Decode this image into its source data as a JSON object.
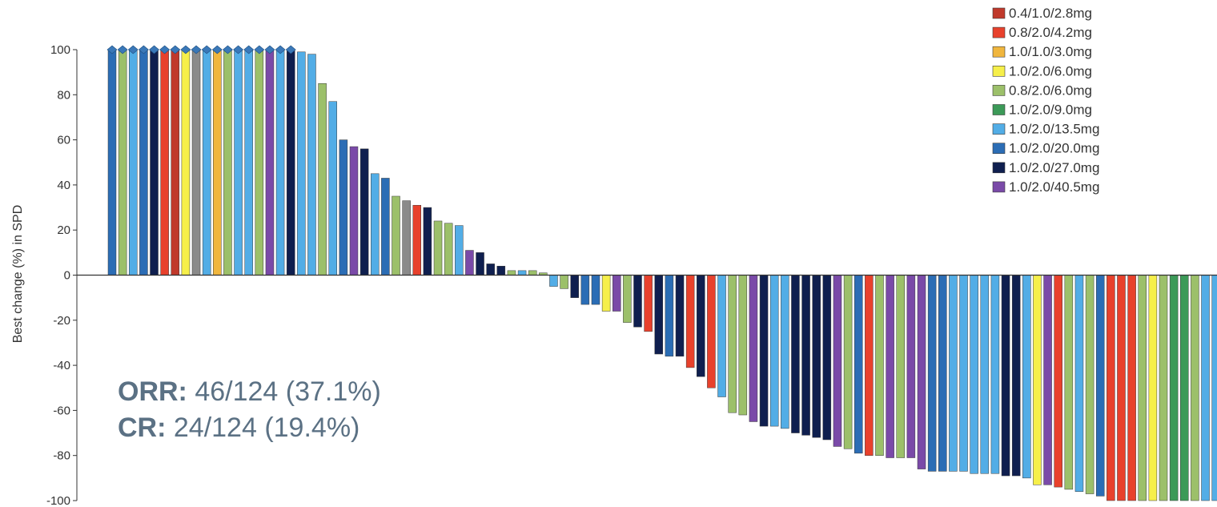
{
  "chart_data": {
    "type": "bar",
    "title": "",
    "ylabel": "Best change (%) in SPD",
    "xlabel": "",
    "ylim": [
      -100,
      100
    ],
    "yticks": [
      100,
      80,
      60,
      40,
      20,
      0,
      -20,
      -40,
      -60,
      -80,
      -100
    ],
    "ytick_labels": [
      "100",
      "80",
      "60",
      "40",
      "20",
      "0",
      "-20",
      "-40",
      "-60",
      "-80",
      "-100"
    ],
    "grid": false,
    "legend_position": "top-right",
    "capped_marker": "diamond at 100",
    "series": [
      {
        "name": "0.4/1.0/2.8mg",
        "color": "#c0392b"
      },
      {
        "name": "0.8/2.0/4.2mg",
        "color": "#e8412c"
      },
      {
        "name": "1.0/1.0/3.0mg",
        "color": "#f0b63e"
      },
      {
        "name": "1.0/2.0/6.0mg",
        "color": "#f6ef4a"
      },
      {
        "name": "0.8/2.0/6.0mg",
        "color": "#9cc06a"
      },
      {
        "name": "1.0/2.0/9.0mg",
        "color": "#3c9a58"
      },
      {
        "name": "1.0/2.0/13.5mg",
        "color": "#52ade6"
      },
      {
        "name": "1.0/2.0/20.0mg",
        "color": "#2b6db5"
      },
      {
        "name": "1.0/2.0/27.0mg",
        "color": "#0f1f4f"
      },
      {
        "name": "1.0/2.0/40.5mg",
        "color": "#7a4aa8"
      }
    ],
    "extra_colors": {
      "gray": "#8a8a8a"
    },
    "bars": [
      {
        "value": 100,
        "color": "#2b6db5",
        "capped": true
      },
      {
        "value": 100,
        "color": "#9cc06a",
        "capped": true
      },
      {
        "value": 100,
        "color": "#52ade6",
        "capped": true
      },
      {
        "value": 100,
        "color": "#2b6db5",
        "capped": true
      },
      {
        "value": 100,
        "color": "#0f1f4f",
        "capped": true
      },
      {
        "value": 100,
        "color": "#e8412c",
        "capped": true
      },
      {
        "value": 100,
        "color": "#c0392b",
        "capped": true
      },
      {
        "value": 100,
        "color": "#f6ef4a",
        "capped": true
      },
      {
        "value": 100,
        "color": "#8a8a8a",
        "capped": true
      },
      {
        "value": 100,
        "color": "#52ade6",
        "capped": true
      },
      {
        "value": 100,
        "color": "#f0b63e",
        "capped": true
      },
      {
        "value": 100,
        "color": "#9cc06a",
        "capped": true
      },
      {
        "value": 100,
        "color": "#52ade6",
        "capped": true
      },
      {
        "value": 100,
        "color": "#52ade6",
        "capped": true
      },
      {
        "value": 100,
        "color": "#9cc06a",
        "capped": true
      },
      {
        "value": 100,
        "color": "#7a4aa8",
        "capped": true
      },
      {
        "value": 100,
        "color": "#52ade6",
        "capped": true
      },
      {
        "value": 100,
        "color": "#0f1f4f",
        "capped": true
      },
      {
        "value": 99,
        "color": "#52ade6",
        "capped": false
      },
      {
        "value": 98,
        "color": "#52ade6",
        "capped": false
      },
      {
        "value": 85,
        "color": "#9cc06a",
        "capped": false
      },
      {
        "value": 77,
        "color": "#52ade6",
        "capped": false
      },
      {
        "value": 60,
        "color": "#2b6db5",
        "capped": false
      },
      {
        "value": 57,
        "color": "#7a4aa8",
        "capped": false
      },
      {
        "value": 56,
        "color": "#0f1f4f",
        "capped": false
      },
      {
        "value": 45,
        "color": "#52ade6",
        "capped": false
      },
      {
        "value": 43,
        "color": "#2b6db5",
        "capped": false
      },
      {
        "value": 35,
        "color": "#9cc06a",
        "capped": false
      },
      {
        "value": 33,
        "color": "#8a8a8a",
        "capped": false
      },
      {
        "value": 31,
        "color": "#e8412c",
        "capped": false
      },
      {
        "value": 30,
        "color": "#0f1f4f",
        "capped": false
      },
      {
        "value": 24,
        "color": "#9cc06a",
        "capped": false
      },
      {
        "value": 23,
        "color": "#9cc06a",
        "capped": false
      },
      {
        "value": 22,
        "color": "#52ade6",
        "capped": false
      },
      {
        "value": 11,
        "color": "#7a4aa8",
        "capped": false
      },
      {
        "value": 10,
        "color": "#0f1f4f",
        "capped": false
      },
      {
        "value": 5,
        "color": "#0f1f4f",
        "capped": false
      },
      {
        "value": 4,
        "color": "#0f1f4f",
        "capped": false
      },
      {
        "value": 2,
        "color": "#9cc06a",
        "capped": false
      },
      {
        "value": 2,
        "color": "#52ade6",
        "capped": false
      },
      {
        "value": 2,
        "color": "#9cc06a",
        "capped": false
      },
      {
        "value": 1,
        "color": "#9cc06a",
        "capped": false
      },
      {
        "value": -5,
        "color": "#52ade6",
        "capped": false
      },
      {
        "value": -6,
        "color": "#9cc06a",
        "capped": false
      },
      {
        "value": -10,
        "color": "#0f1f4f",
        "capped": false
      },
      {
        "value": -13,
        "color": "#2b6db5",
        "capped": false
      },
      {
        "value": -13,
        "color": "#2b6db5",
        "capped": false
      },
      {
        "value": -16,
        "color": "#f6ef4a",
        "capped": false
      },
      {
        "value": -16,
        "color": "#7a4aa8",
        "capped": false
      },
      {
        "value": -21,
        "color": "#9cc06a",
        "capped": false
      },
      {
        "value": -23,
        "color": "#0f1f4f",
        "capped": false
      },
      {
        "value": -25,
        "color": "#e8412c",
        "capped": false
      },
      {
        "value": -35,
        "color": "#0f1f4f",
        "capped": false
      },
      {
        "value": -36,
        "color": "#2b6db5",
        "capped": false
      },
      {
        "value": -36,
        "color": "#0f1f4f",
        "capped": false
      },
      {
        "value": -41,
        "color": "#e8412c",
        "capped": false
      },
      {
        "value": -45,
        "color": "#0f1f4f",
        "capped": false
      },
      {
        "value": -50,
        "color": "#e8412c",
        "capped": false
      },
      {
        "value": -54,
        "color": "#52ade6",
        "capped": false
      },
      {
        "value": -61,
        "color": "#9cc06a",
        "capped": false
      },
      {
        "value": -62,
        "color": "#9cc06a",
        "capped": false
      },
      {
        "value": -65,
        "color": "#7a4aa8",
        "capped": false
      },
      {
        "value": -67,
        "color": "#0f1f4f",
        "capped": false
      },
      {
        "value": -67,
        "color": "#52ade6",
        "capped": false
      },
      {
        "value": -68,
        "color": "#52ade6",
        "capped": false
      },
      {
        "value": -70,
        "color": "#0f1f4f",
        "capped": false
      },
      {
        "value": -71,
        "color": "#0f1f4f",
        "capped": false
      },
      {
        "value": -72,
        "color": "#0f1f4f",
        "capped": false
      },
      {
        "value": -73,
        "color": "#0f1f4f",
        "capped": false
      },
      {
        "value": -76,
        "color": "#7a4aa8",
        "capped": false
      },
      {
        "value": -77,
        "color": "#9cc06a",
        "capped": false
      },
      {
        "value": -79,
        "color": "#2b6db5",
        "capped": false
      },
      {
        "value": -80,
        "color": "#e8412c",
        "capped": false
      },
      {
        "value": -80,
        "color": "#9cc06a",
        "capped": false
      },
      {
        "value": -81,
        "color": "#7a4aa8",
        "capped": false
      },
      {
        "value": -81,
        "color": "#9cc06a",
        "capped": false
      },
      {
        "value": -81,
        "color": "#7a4aa8",
        "capped": false
      },
      {
        "value": -86,
        "color": "#7a4aa8",
        "capped": false
      },
      {
        "value": -87,
        "color": "#2b6db5",
        "capped": false
      },
      {
        "value": -87,
        "color": "#2b6db5",
        "capped": false
      },
      {
        "value": -87,
        "color": "#52ade6",
        "capped": false
      },
      {
        "value": -87,
        "color": "#52ade6",
        "capped": false
      },
      {
        "value": -88,
        "color": "#52ade6",
        "capped": false
      },
      {
        "value": -88,
        "color": "#52ade6",
        "capped": false
      },
      {
        "value": -88,
        "color": "#52ade6",
        "capped": false
      },
      {
        "value": -89,
        "color": "#0f1f4f",
        "capped": false
      },
      {
        "value": -89,
        "color": "#0f1f4f",
        "capped": false
      },
      {
        "value": -90,
        "color": "#52ade6",
        "capped": false
      },
      {
        "value": -93,
        "color": "#f6ef4a",
        "capped": false
      },
      {
        "value": -93,
        "color": "#7a4aa8",
        "capped": false
      },
      {
        "value": -94,
        "color": "#e8412c",
        "capped": false
      },
      {
        "value": -95,
        "color": "#9cc06a",
        "capped": false
      },
      {
        "value": -96,
        "color": "#52ade6",
        "capped": false
      },
      {
        "value": -97,
        "color": "#9cc06a",
        "capped": false
      },
      {
        "value": -98,
        "color": "#2b6db5",
        "capped": false
      },
      {
        "value": -100,
        "color": "#e8412c",
        "capped": false
      },
      {
        "value": -100,
        "color": "#e8412c",
        "capped": false
      },
      {
        "value": -100,
        "color": "#e8412c",
        "capped": false
      },
      {
        "value": -100,
        "color": "#9cc06a",
        "capped": false
      },
      {
        "value": -100,
        "color": "#f6ef4a",
        "capped": false
      },
      {
        "value": -100,
        "color": "#9cc06a",
        "capped": false
      },
      {
        "value": -100,
        "color": "#3c9a58",
        "capped": false
      },
      {
        "value": -100,
        "color": "#3c9a58",
        "capped": false
      },
      {
        "value": -100,
        "color": "#9cc06a",
        "capped": false
      },
      {
        "value": -100,
        "color": "#52ade6",
        "capped": false
      },
      {
        "value": -100,
        "color": "#52ade6",
        "capped": false
      },
      {
        "value": -100,
        "color": "#2b6db5",
        "capped": false
      }
    ]
  },
  "annotations": {
    "orr_label": "ORR:",
    "orr_value": " 46/124 (37.1%)",
    "cr_label": "CR:",
    "cr_value": " 24/124 (19.4%)"
  }
}
